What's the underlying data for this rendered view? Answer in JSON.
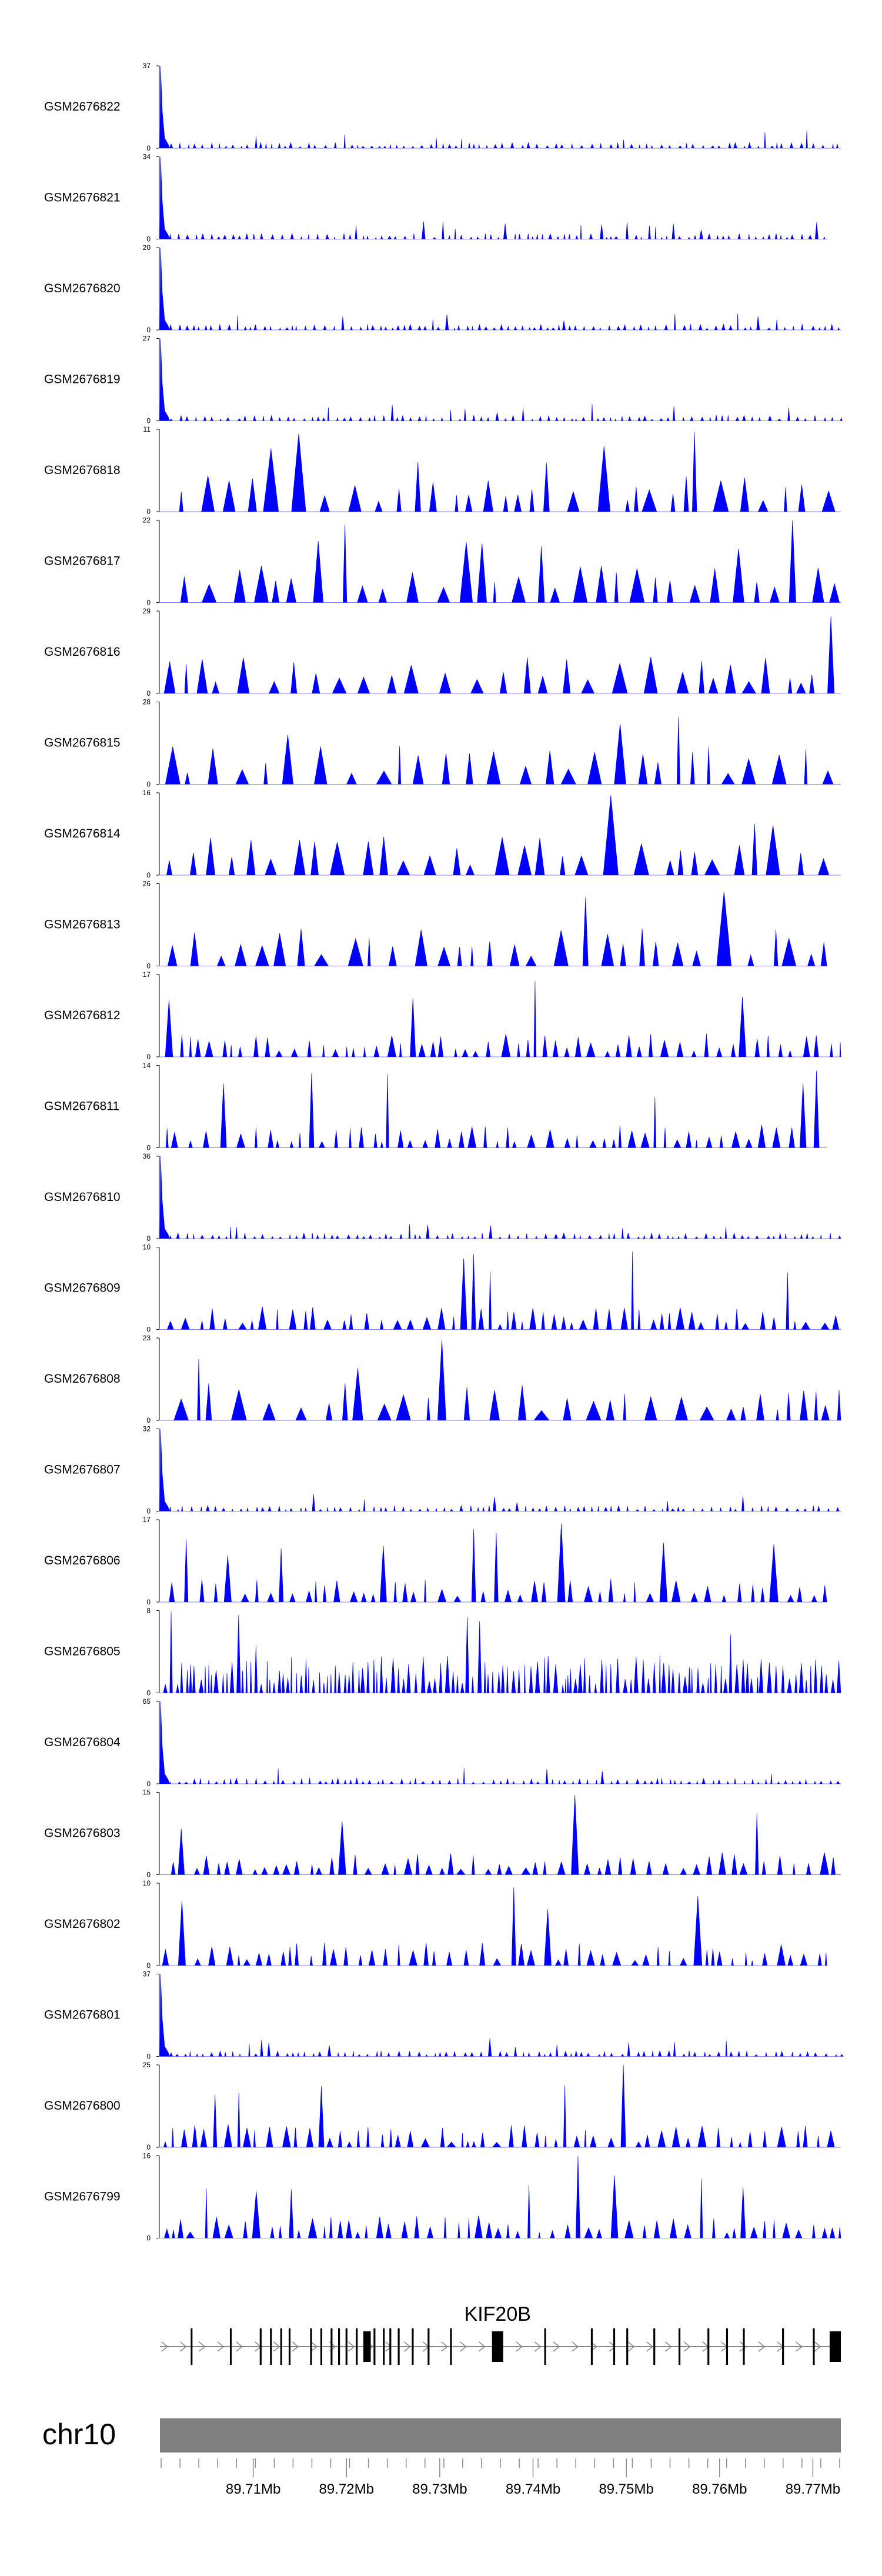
{
  "chart_data": {
    "type": "area",
    "title": "",
    "chromosome": "chr10",
    "xlim_mb": [
      89.7,
      89.773
    ],
    "x_ticks_mb": [
      89.71,
      89.72,
      89.73,
      89.74,
      89.75,
      89.76,
      89.77
    ],
    "x_tick_labels": [
      "89.71Mb",
      "89.72Mb",
      "89.73Mb",
      "89.74Mb",
      "89.75Mb",
      "89.76Mb",
      "89.77Mb"
    ],
    "minor_tick_count": 37,
    "fill_color": "#0000ff",
    "tracks": [
      {
        "name": "GSM2676822",
        "ymax": 37,
        "ymin": 0,
        "profile": "spike-start",
        "end_mb": 89.773
      },
      {
        "name": "GSM2676821",
        "ymax": 34,
        "ymin": 0,
        "profile": "spike-start",
        "end_mb": 89.7715
      },
      {
        "name": "GSM2676820",
        "ymax": 20,
        "ymin": 0,
        "profile": "spike-start",
        "end_mb": 89.773
      },
      {
        "name": "GSM2676819",
        "ymax": 27,
        "ymin": 0,
        "profile": "spike-start",
        "end_mb": 89.773
      },
      {
        "name": "GSM2676818",
        "ymax": 11,
        "ymin": 0,
        "profile": "sparse-peaks",
        "end_mb": 89.773
      },
      {
        "name": "GSM2676817",
        "ymax": 22,
        "ymin": 0,
        "profile": "sparse-peaks",
        "end_mb": 89.773
      },
      {
        "name": "GSM2676816",
        "ymax": 29,
        "ymin": 0,
        "profile": "sparse-peaks",
        "end_mb": 89.773
      },
      {
        "name": "GSM2676815",
        "ymax": 28,
        "ymin": 0,
        "profile": "sparse-peaks",
        "end_mb": 89.773
      },
      {
        "name": "GSM2676814",
        "ymax": 16,
        "ymin": 0,
        "profile": "sparse-peaks",
        "end_mb": 89.773
      },
      {
        "name": "GSM2676813",
        "ymax": 26,
        "ymin": 0,
        "profile": "sparse-peaks",
        "end_mb": 89.7715
      },
      {
        "name": "GSM2676812",
        "ymax": 17,
        "ymin": 0,
        "profile": "dense-peaks",
        "end_mb": 89.773
      },
      {
        "name": "GSM2676811",
        "ymax": 14,
        "ymin": 0,
        "profile": "dense-peaks",
        "end_mb": 89.7715
      },
      {
        "name": "GSM2676810",
        "ymax": 36,
        "ymin": 0,
        "profile": "spike-start",
        "end_mb": 89.773
      },
      {
        "name": "GSM2676809",
        "ymax": 10,
        "ymin": 0,
        "profile": "dense-peaks",
        "end_mb": 89.773
      },
      {
        "name": "GSM2676808",
        "ymax": 23,
        "ymin": 0,
        "profile": "sparse-peaks",
        "end_mb": 89.773
      },
      {
        "name": "GSM2676807",
        "ymax": 32,
        "ymin": 0,
        "profile": "spike-start",
        "end_mb": 89.773
      },
      {
        "name": "GSM2676806",
        "ymax": 17,
        "ymin": 0,
        "profile": "dense-peaks",
        "end_mb": 89.7715
      },
      {
        "name": "GSM2676805",
        "ymax": 8,
        "ymin": 0,
        "profile": "very-dense",
        "end_mb": 89.773
      },
      {
        "name": "GSM2676804",
        "ymax": 65,
        "ymin": 0,
        "profile": "spike-start",
        "end_mb": 89.773
      },
      {
        "name": "GSM2676803",
        "ymax": 15,
        "ymin": 0,
        "profile": "dense-peaks",
        "end_mb": 89.773
      },
      {
        "name": "GSM2676802",
        "ymax": 10,
        "ymin": 0,
        "profile": "dense-peaks",
        "end_mb": 89.7715
      },
      {
        "name": "GSM2676801",
        "ymax": 37,
        "ymin": 0,
        "profile": "spike-start",
        "end_mb": 89.773
      },
      {
        "name": "GSM2676800",
        "ymax": 25,
        "ymin": 0,
        "profile": "dense-peaks",
        "end_mb": 89.773
      },
      {
        "name": "GSM2676799",
        "ymax": 16,
        "ymin": 0,
        "profile": "dense-peaks",
        "end_mb": 89.773
      }
    ],
    "gene": {
      "name": "KIF20B",
      "strand": "+",
      "start_mb": 89.7,
      "end_mb": 89.773,
      "exons_mb": [
        [
          89.7033,
          89.70345
        ],
        [
          89.7075,
          89.70765
        ],
        [
          89.7107,
          89.7109
        ],
        [
          89.7118,
          89.712
        ],
        [
          89.7129,
          89.7131
        ],
        [
          89.7138,
          89.714
        ],
        [
          89.7161,
          89.7163
        ],
        [
          89.7172,
          89.7174
        ],
        [
          89.7183,
          89.7185
        ],
        [
          89.7191,
          89.7193
        ],
        [
          89.7199,
          89.7201
        ],
        [
          89.721,
          89.7212
        ],
        [
          89.7218,
          89.7226
        ],
        [
          89.7229,
          89.7231
        ],
        [
          89.7239,
          89.7241
        ],
        [
          89.7246,
          89.7248
        ],
        [
          89.7255,
          89.7257
        ],
        [
          89.727,
          89.7272
        ],
        [
          89.7287,
          89.7289
        ],
        [
          89.7311,
          89.7313
        ],
        [
          89.7356,
          89.7368
        ],
        [
          89.7412,
          89.7414
        ],
        [
          89.7462,
          89.7464
        ],
        [
          89.7486,
          89.7488
        ],
        [
          89.75,
          89.7502
        ],
        [
          89.7529,
          89.7531
        ],
        [
          89.7556,
          89.7558
        ],
        [
          89.7587,
          89.7589
        ],
        [
          89.7607,
          89.7609
        ],
        [
          89.7625,
          89.7627
        ],
        [
          89.7667,
          89.7669
        ],
        [
          89.77,
          89.7702
        ],
        [
          89.7718,
          89.773
        ]
      ]
    }
  }
}
